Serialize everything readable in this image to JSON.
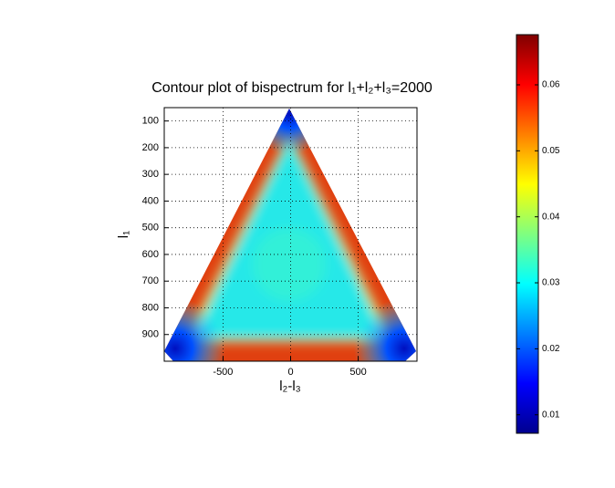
{
  "chart_data": {
    "type": "contour",
    "title": "Contour plot of bispectrum for l₁+l₂+l₃=2000",
    "xlabel": "l₂-l₃",
    "ylabel": "l₁",
    "xlim": [
      -935,
      935
    ],
    "xticks": [
      -500,
      0,
      500
    ],
    "ylim": [
      50,
      1000
    ],
    "y_direction": "reverse",
    "yticks": [
      100,
      200,
      300,
      400,
      500,
      600,
      700,
      800,
      900
    ],
    "grid": true,
    "colormap": "jet",
    "clim": [
      0.0072,
      0.0676
    ],
    "cticks": [
      0.01,
      0.02,
      0.03,
      0.04,
      0.05,
      0.06
    ]
  }
}
